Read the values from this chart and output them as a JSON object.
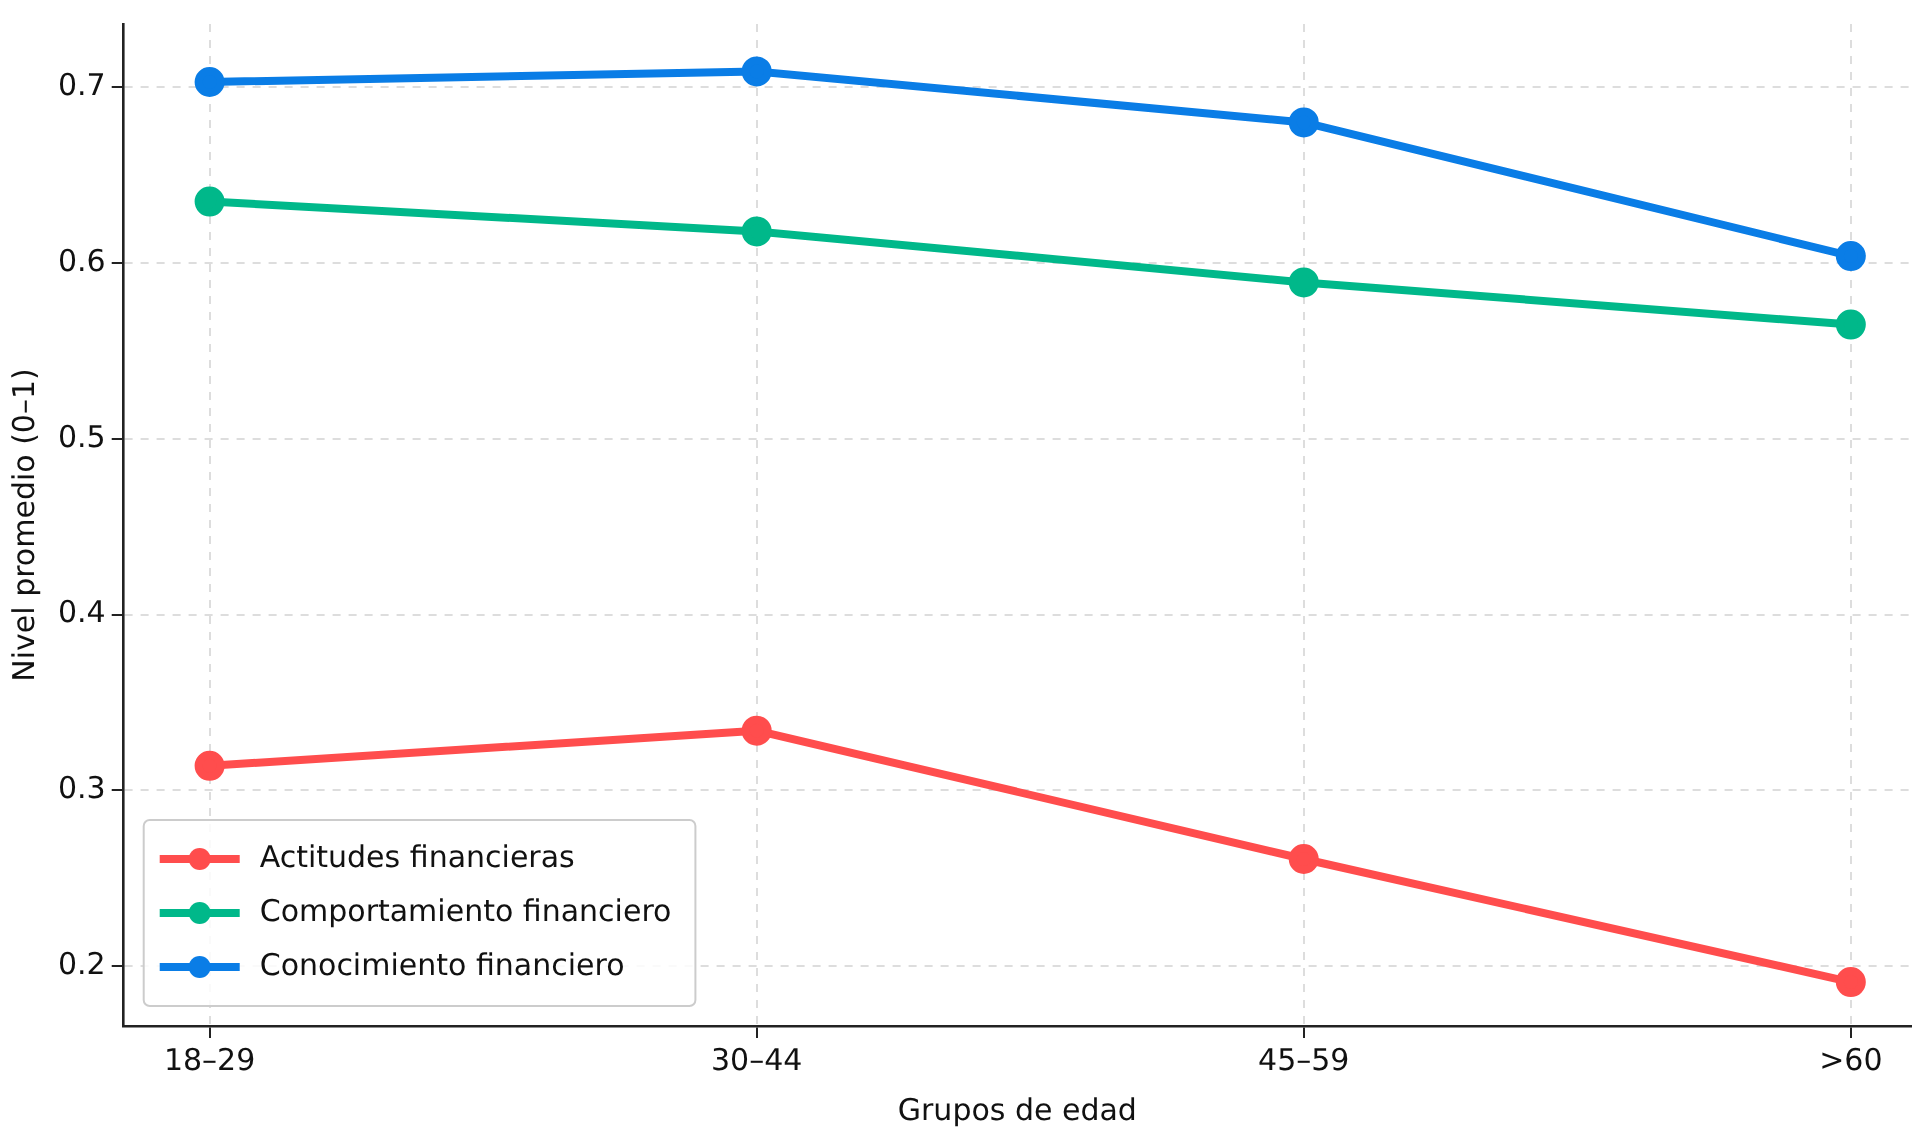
{
  "chart_data": {
    "type": "line",
    "xlabel": "Grupos de edad",
    "ylabel": "Nivel promedio (0–1)",
    "categories": [
      "18–29",
      "30–44",
      "45–59",
      ">60"
    ],
    "series": [
      {
        "name": "Actitudes financieras",
        "color": "#ff4d4d",
        "values": [
          0.314,
          0.334,
          0.261,
          0.191
        ]
      },
      {
        "name": "Comportamiento financiero",
        "color": "#00b88a",
        "values": [
          0.635,
          0.618,
          0.589,
          0.565
        ]
      },
      {
        "name": "Conocimiento financiero",
        "color": "#0a7de6",
        "values": [
          0.703,
          0.709,
          0.68,
          0.604
        ]
      }
    ],
    "ylim": [
      0.166,
      0.736
    ],
    "yticks": [
      0.2,
      0.3,
      0.4,
      0.5,
      0.6,
      0.7
    ],
    "grid": true,
    "legend": "bottom left",
    "marker": "circle",
    "line_style": "solid"
  }
}
